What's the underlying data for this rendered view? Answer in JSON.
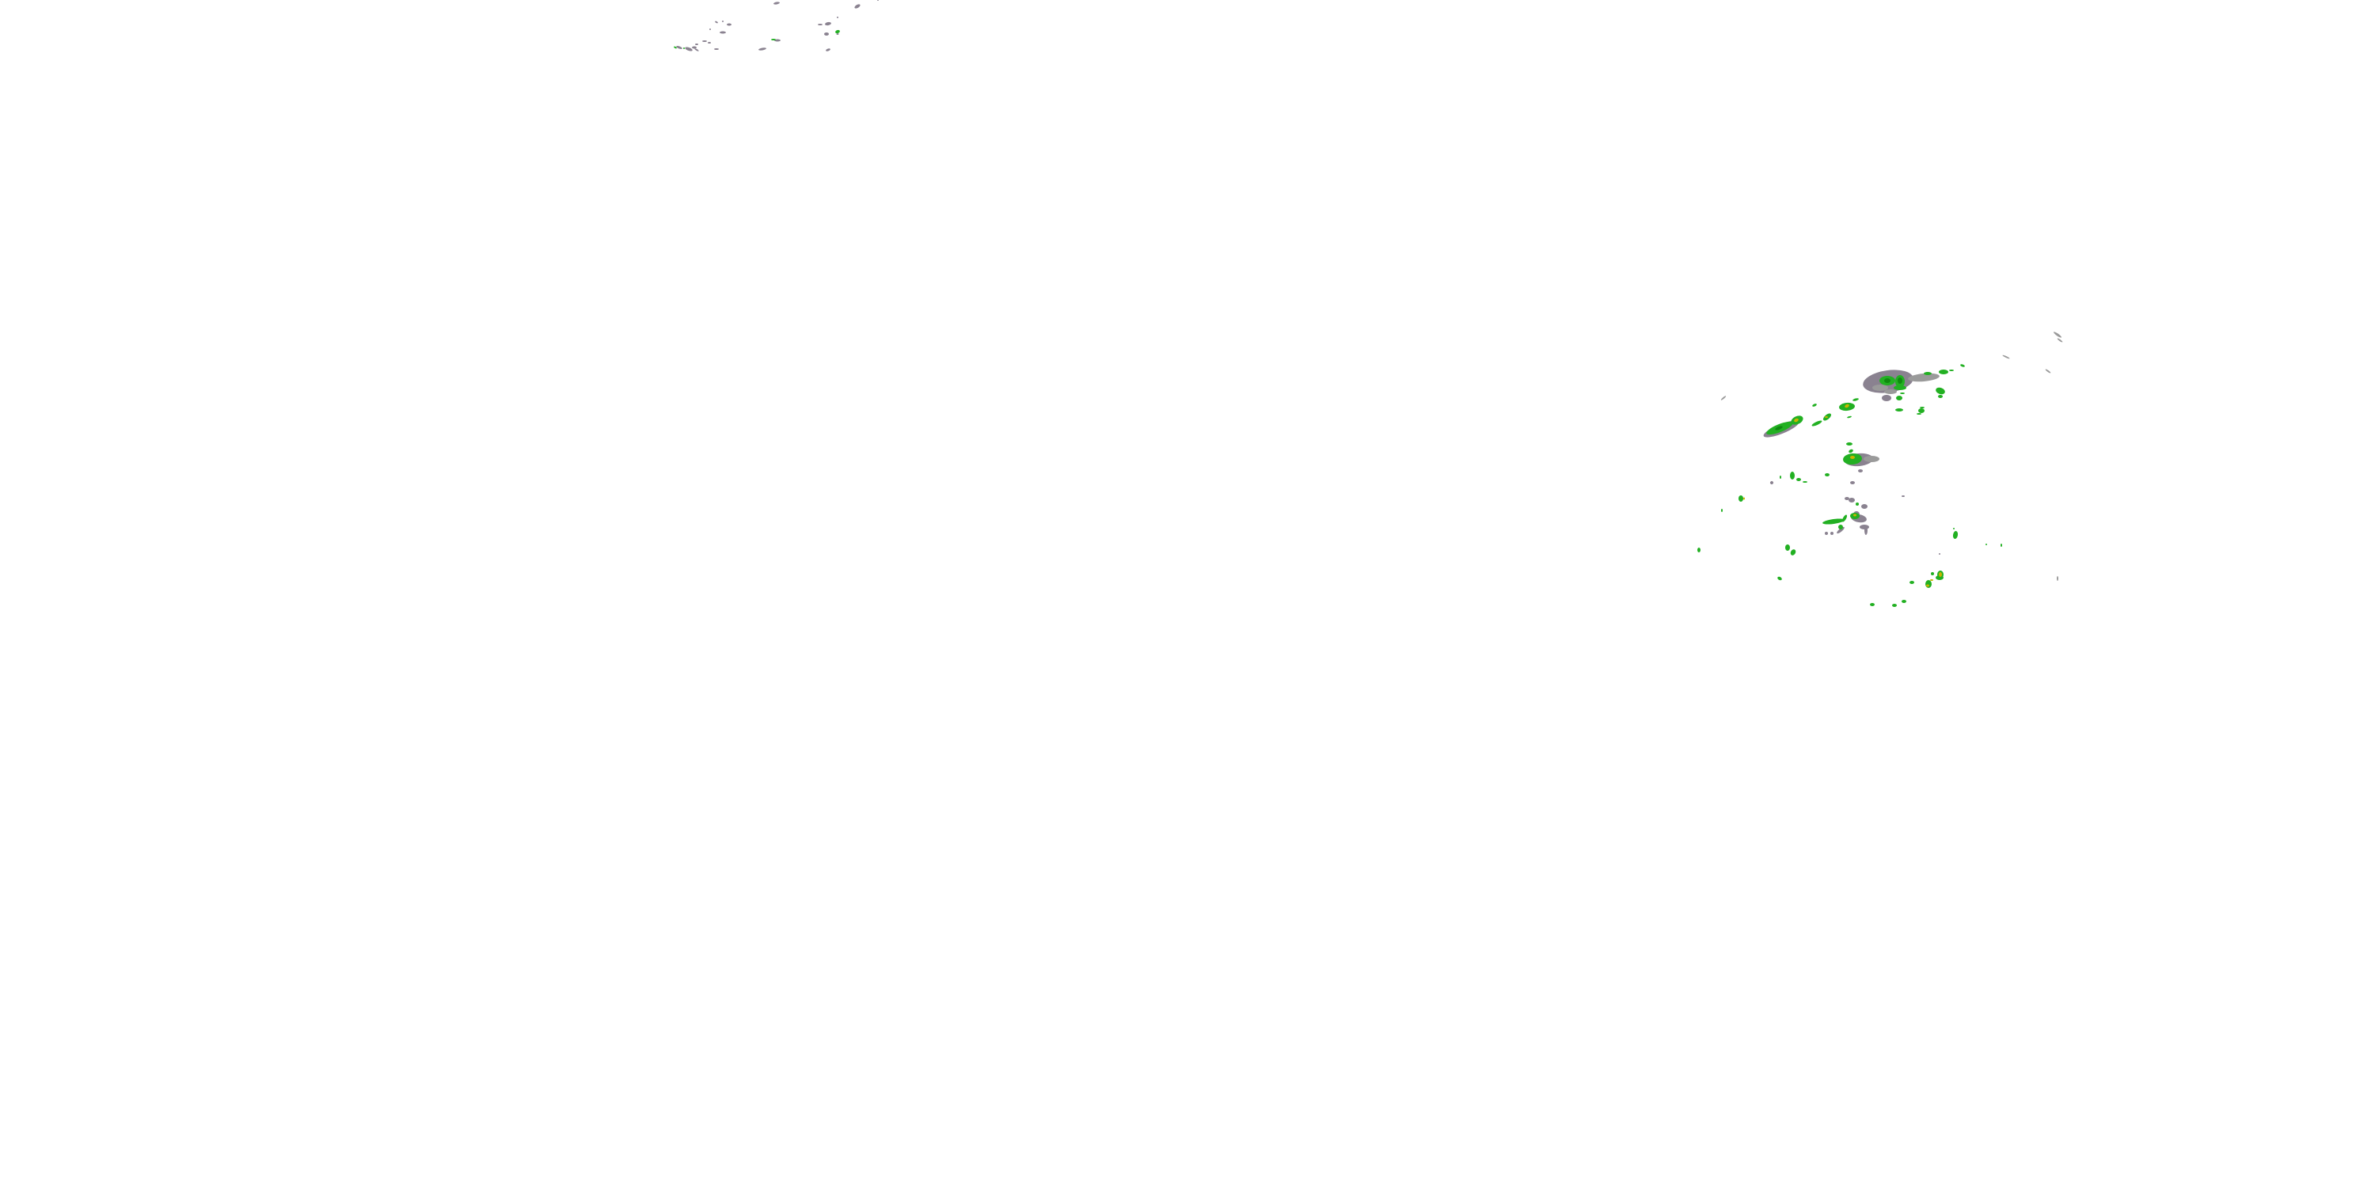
{
  "map": {
    "layer": "radar-reflectivity-overlay",
    "background": "#ffffff",
    "colors": {
      "light_echo": "#8a8290",
      "light_echo_alt": "#9a9a9a",
      "moderate_echo": "#22b022",
      "dark_green": "#108a10",
      "heavy_echo": "#c8b400"
    }
  }
}
